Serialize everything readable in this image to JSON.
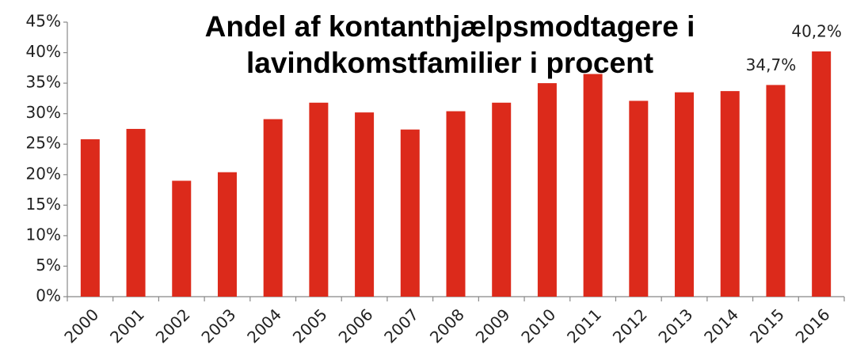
{
  "chart_data": {
    "type": "bar",
    "title": [
      "Andel af kontanthjælpsmodtagere i",
      "lavindkomstfamilier i procent"
    ],
    "categories": [
      "2000",
      "2001",
      "2002",
      "2003",
      "2004",
      "2005",
      "2006",
      "2007",
      "2008",
      "2009",
      "2010",
      "2011",
      "2012",
      "2013",
      "2014",
      "2015",
      "2016"
    ],
    "values": [
      25.8,
      27.5,
      19.0,
      20.4,
      29.1,
      31.8,
      30.2,
      27.4,
      30.4,
      31.8,
      35.0,
      36.5,
      32.1,
      33.5,
      33.7,
      34.7,
      40.2
    ],
    "value_labels": [
      null,
      null,
      null,
      null,
      null,
      null,
      null,
      null,
      null,
      null,
      null,
      null,
      null,
      null,
      null,
      "34,7%",
      "40,2%"
    ],
    "color": "#dc2a1b",
    "ylim": [
      0,
      45
    ],
    "yticks": [
      {
        "value": 0,
        "label": "0%"
      },
      {
        "value": 5,
        "label": "5%"
      },
      {
        "value": 10,
        "label": "10%"
      },
      {
        "value": 15,
        "label": "15%"
      },
      {
        "value": 20,
        "label": "20%"
      },
      {
        "value": 25,
        "label": "25%"
      },
      {
        "value": 30,
        "label": "30%"
      },
      {
        "value": 35,
        "label": "35%"
      },
      {
        "value": 40,
        "label": "40%"
      },
      {
        "value": 45,
        "label": "45%"
      }
    ],
    "grid": false
  }
}
